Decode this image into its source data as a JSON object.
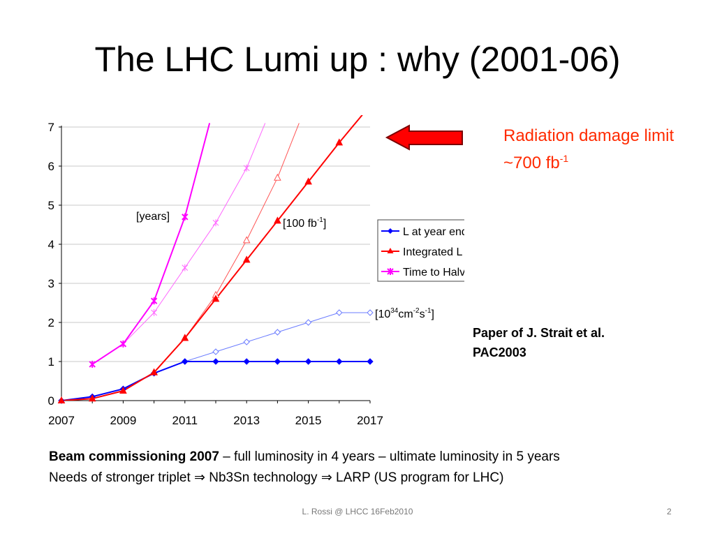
{
  "slide": {
    "title": "The LHC Lumi up : why (2001-06)",
    "radiation_line1": "Radiation damage limit",
    "radiation_line2_prefix": "~700 fb",
    "radiation_line2_sup": "-1",
    "paper_line1": "Paper of J. Strait et al.",
    "paper_line2": "PAC2003",
    "bottom_line1_bold": "Beam commissioning 2007",
    "bottom_line1_rest": " – full luminosity in 4 years – ultimate luminosity in 5 years",
    "bottom_line2_a": "Needs of stronger triplet ",
    "bottom_line2_b": " Nb3Sn technology ",
    "bottom_line2_c": " LARP (US program for LHC)",
    "implies_symbol": "⇒",
    "footer_center": "L. Rossi @ LHCC 16Feb2010",
    "footer_page": "2",
    "arrow_color": "#ff0000"
  },
  "chart_data": {
    "type": "line",
    "xlim": [
      2007,
      2017
    ],
    "ylim": [
      0,
      7
    ],
    "x_ticks": [
      2007,
      2009,
      2011,
      2013,
      2015,
      2017
    ],
    "y_ticks": [
      0,
      1,
      2,
      3,
      4,
      5,
      6,
      7
    ],
    "grid": true,
    "legend_position": "right",
    "legend": [
      "L at year end",
      "Integrated L",
      "Time to Halve Error"
    ],
    "annotations": {
      "years": "[years]",
      "fb_prefix": "[100 fb",
      "fb_sup": "-1",
      "fb_suffix": "]",
      "lumi_prefix": "[10",
      "lumi_sup1": "34",
      "lumi_mid1": "cm",
      "lumi_sup2": "-2",
      "lumi_mid2": "s",
      "lumi_sup3": "-1",
      "lumi_suffix": "]"
    },
    "series": [
      {
        "name": "L at year end",
        "color": "#0000ff",
        "marker": "diamond",
        "filled": true,
        "width": 2,
        "x": [
          2007,
          2008,
          2009,
          2010,
          2011,
          2012,
          2013,
          2014,
          2015,
          2016,
          2017
        ],
        "y": [
          0,
          0.1,
          0.3,
          0.7,
          1,
          1,
          1,
          1,
          1,
          1,
          1
        ]
      },
      {
        "name": "Integrated L",
        "color": "#ff0000",
        "marker": "triangle",
        "filled": true,
        "width": 2,
        "x": [
          2007,
          2008,
          2009,
          2010,
          2011,
          2012,
          2013,
          2014,
          2015,
          2016,
          2017
        ],
        "y": [
          0,
          0.05,
          0.25,
          0.72,
          1.6,
          2.6,
          3.6,
          4.6,
          5.6,
          6.6,
          7.55
        ]
      },
      {
        "name": "Time to Halve Error",
        "color": "#ff00ff",
        "marker": "star",
        "filled": true,
        "width": 2,
        "x": [
          2008,
          2009,
          2010,
          2011,
          2011.8
        ],
        "y": [
          0.93,
          1.45,
          2.55,
          4.7,
          7.1
        ]
      },
      {
        "color": "#6b7cff",
        "marker": "diamond",
        "filled": false,
        "width": 1,
        "x": [
          2011,
          2012,
          2013,
          2014,
          2015,
          2016,
          2017
        ],
        "y": [
          1,
          1.25,
          1.5,
          1.75,
          2,
          2.25,
          2.25
        ]
      },
      {
        "color": "#ff5555",
        "marker": "triangle",
        "filled": false,
        "width": 1,
        "x": [
          2010,
          2011,
          2012,
          2013,
          2014,
          2014.7
        ],
        "y": [
          0.72,
          1.6,
          2.7,
          4.1,
          5.7,
          7.1
        ]
      },
      {
        "color": "#ff66ff",
        "marker": "star",
        "filled": false,
        "width": 1,
        "x": [
          2008,
          2009,
          2010,
          2011,
          2012,
          2013,
          2013.6
        ],
        "y": [
          0.93,
          1.45,
          2.25,
          3.4,
          4.55,
          5.95,
          7.1
        ]
      }
    ]
  }
}
